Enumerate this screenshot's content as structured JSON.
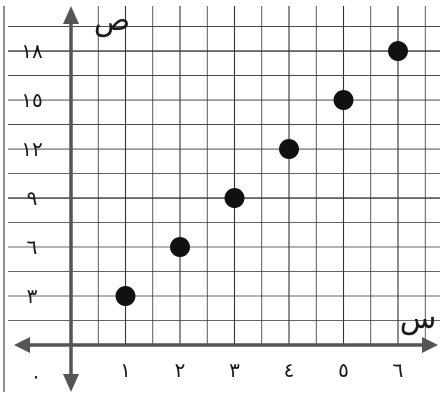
{
  "chart_data": {
    "type": "scatter",
    "x": [
      1,
      2,
      3,
      4,
      5,
      6
    ],
    "y": [
      3,
      6,
      9,
      12,
      15,
      18
    ],
    "xlabel": "س",
    "ylabel": "ص",
    "origin_label": "٠",
    "x_tick_labels": [
      "١",
      "٢",
      "٣",
      "٤",
      "٥",
      "٦"
    ],
    "y_tick_labels": [
      "٣",
      "٦",
      "٩",
      "١٢",
      "١٥",
      "١٨"
    ],
    "xlim": [
      0,
      6.5
    ],
    "ylim": [
      0,
      20
    ],
    "grid": true,
    "colors": {
      "points": "#111111",
      "axes": "#555555",
      "grid": "#333333"
    }
  }
}
